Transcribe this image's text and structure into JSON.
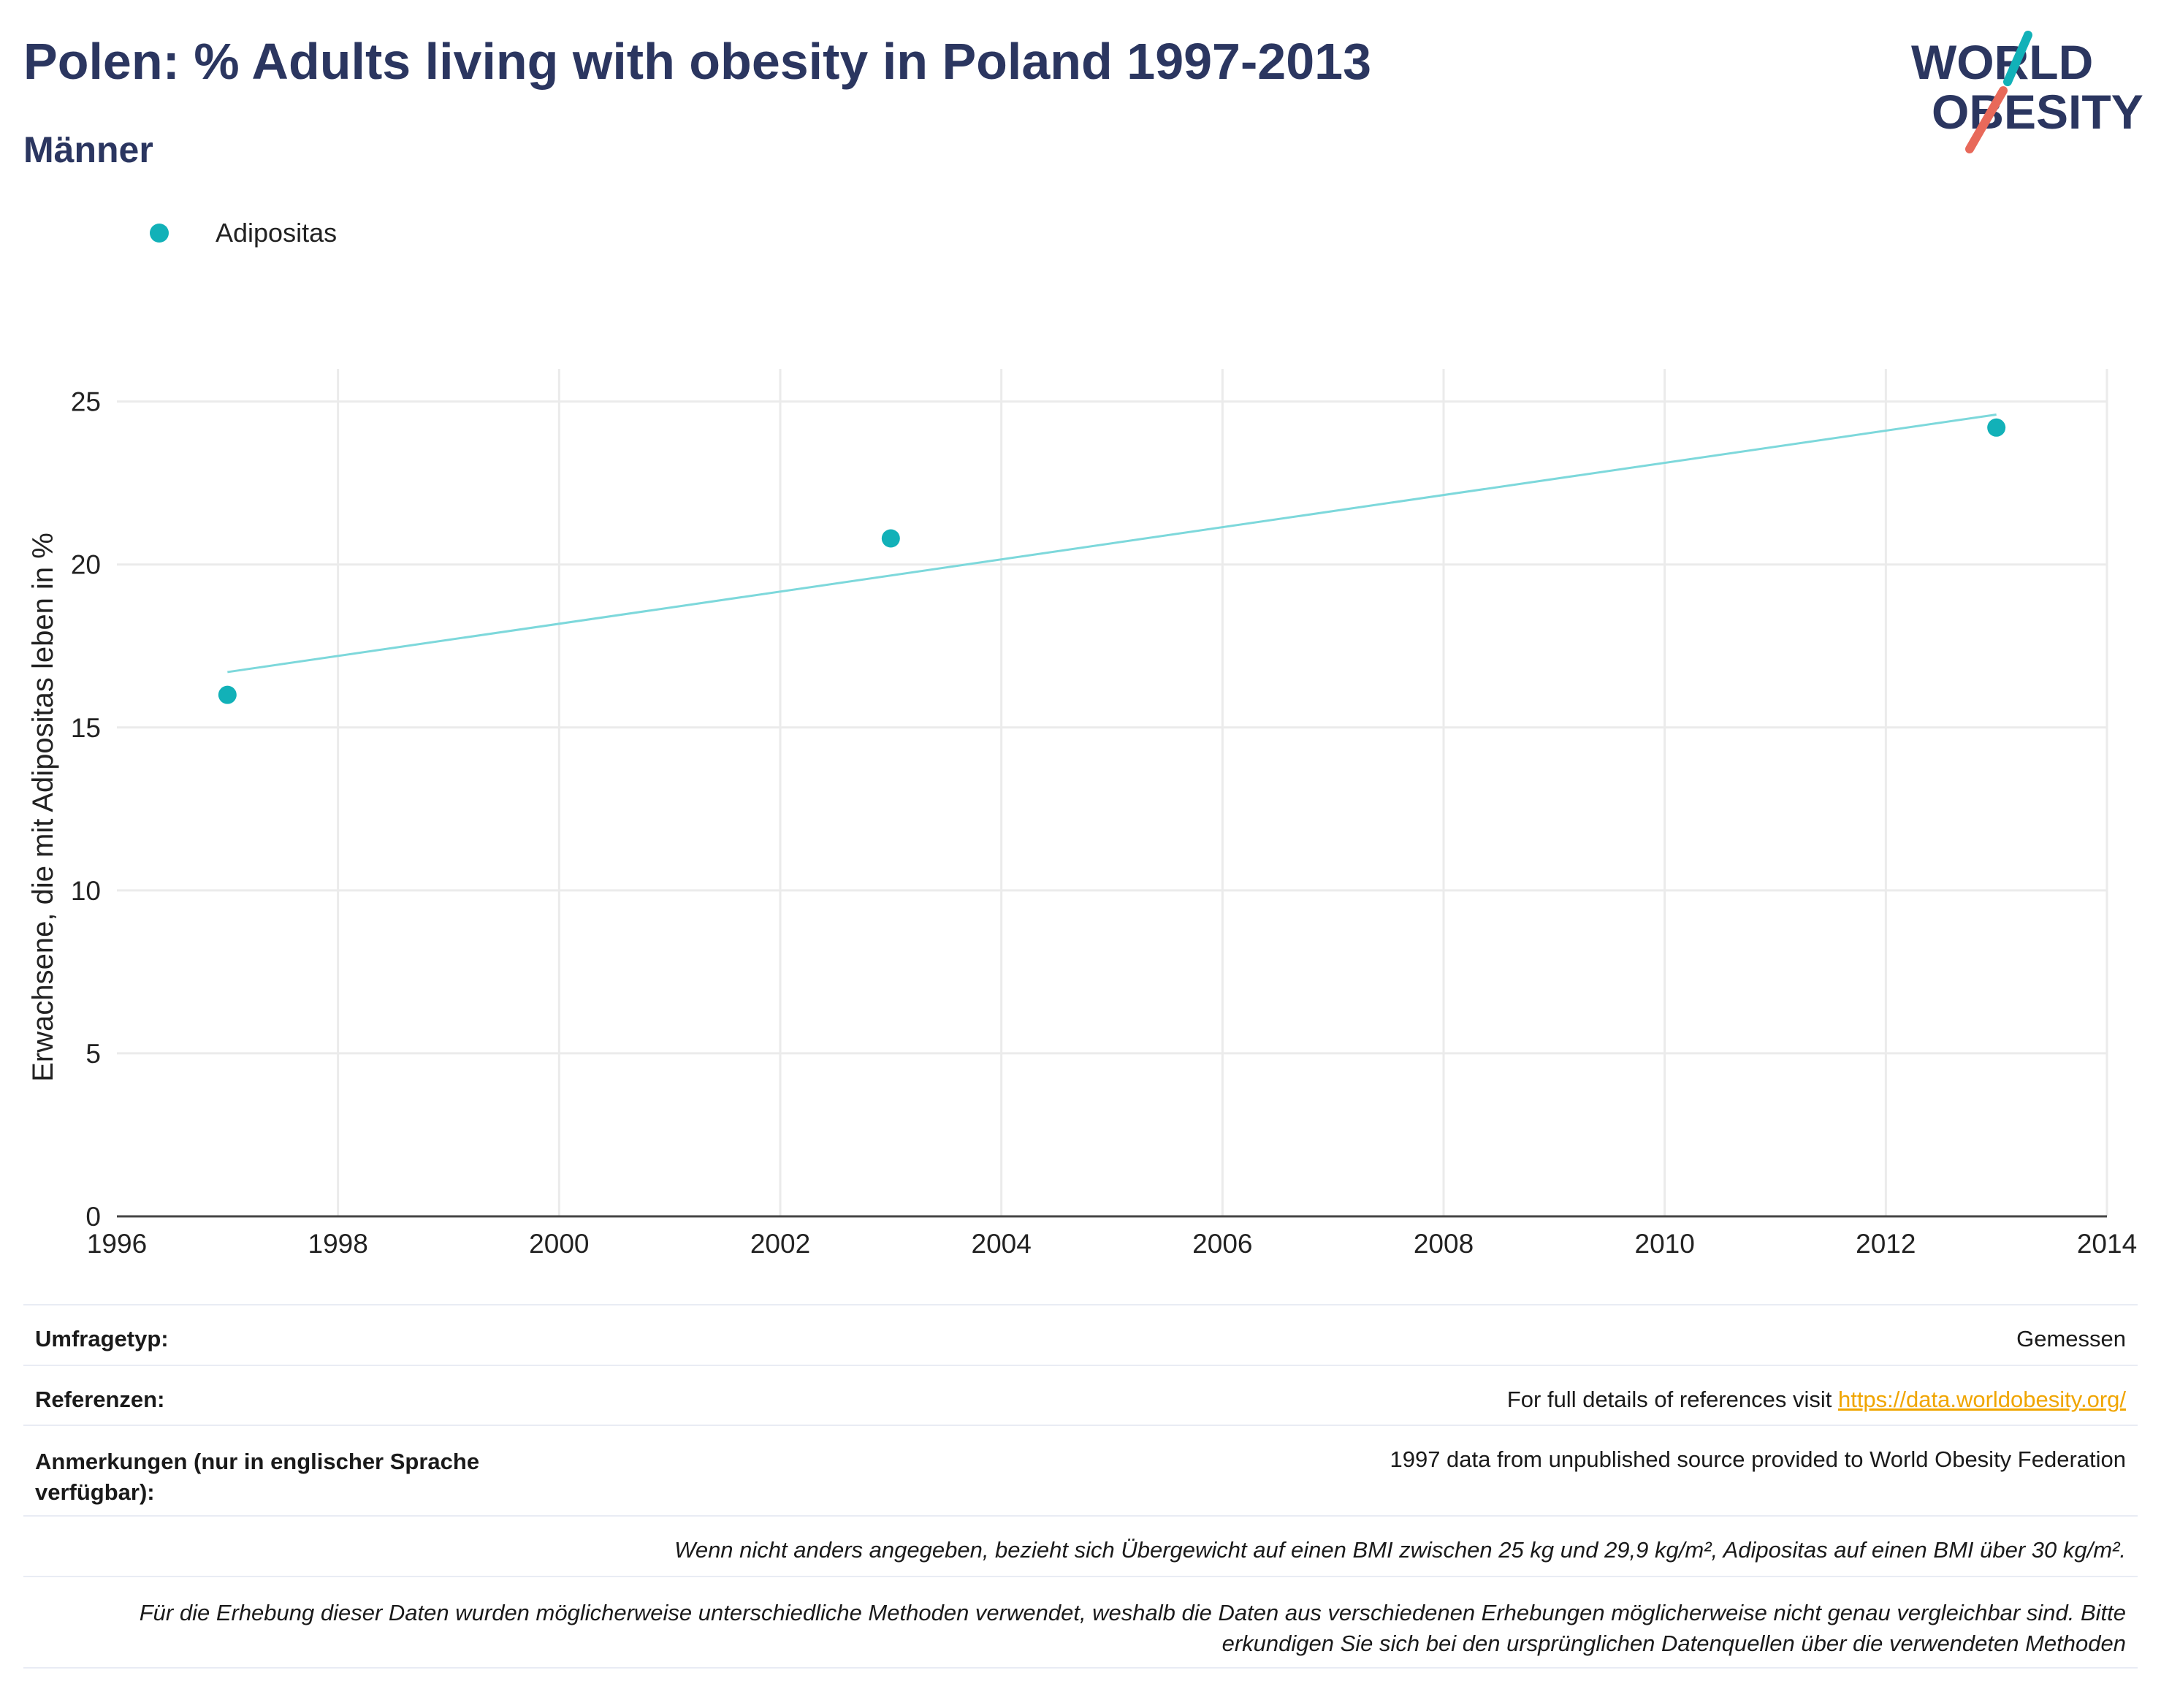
{
  "header": {
    "title": "Polen: % Adults living with obesity in Poland 1997-2013",
    "subtitle": "Männer"
  },
  "logo": {
    "line1": "WORLD",
    "line2": "OBESITY",
    "colors": {
      "text": "#2b3660",
      "teal": "#12b1b8",
      "coral": "#e8695a"
    }
  },
  "chart_data": {
    "type": "scatter",
    "legend": [
      {
        "name": "Adipositas",
        "color": "#12b1b8"
      }
    ],
    "legend_position": "top-left",
    "ylabel": "Erwachsene, die mit Adipositas leben in %",
    "xlim": [
      1996,
      2014
    ],
    "ylim": [
      0,
      26
    ],
    "x_ticks": [
      1996,
      1998,
      2000,
      2002,
      2004,
      2006,
      2008,
      2010,
      2012,
      2014
    ],
    "y_ticks": [
      0,
      5,
      10,
      15,
      20,
      25
    ],
    "grid": true,
    "series": [
      {
        "name": "Adipositas",
        "x": [
          1997,
          2003,
          2013
        ],
        "y": [
          16.0,
          20.8,
          24.2
        ],
        "color": "#12b1b8"
      }
    ],
    "trendline": {
      "x": [
        1997,
        2013
      ],
      "y": [
        16.7,
        24.6
      ],
      "color": "#7dd8db"
    }
  },
  "info": {
    "survey_label": "Umfragetyp:",
    "survey_value": "Gemessen",
    "ref_label": "Referenzen:",
    "ref_text": "For full details of references visit ",
    "ref_link": "https://data.worldobesity.org/",
    "notes_label": "Anmerkungen (nur in englischer Sprache verfügbar):",
    "notes_value": "1997 data from unpublished source provided to World Obesity Federation",
    "bmi_note": "Wenn nicht anders angegeben, bezieht sich Übergewicht auf einen BMI zwischen 25 kg und 29,9 kg/m², Adipositas auf einen BMI über 30 kg/m².",
    "method_note": "Für die Erhebung dieser Daten wurden möglicherweise unterschiedliche Methoden verwendet, weshalb die Daten aus verschiedenen Erhebungen möglicherweise nicht genau vergleichbar sind. Bitte erkundigen Sie sich bei den ursprünglichen Datenquellen über die verwendeten Methoden"
  }
}
